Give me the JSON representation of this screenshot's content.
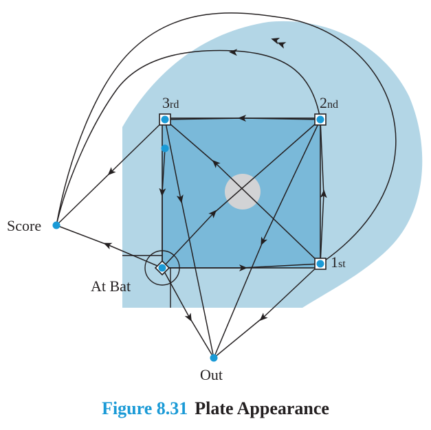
{
  "labels": {
    "third": "3",
    "third_sup": "rd",
    "second": "2",
    "second_sup": "nd",
    "first": "1",
    "first_sup": "st",
    "score": "Score",
    "at_bat": "At Bat",
    "out": "Out"
  },
  "caption": {
    "number": "Figure 8.31",
    "title": "Plate Appearance"
  },
  "colors": {
    "field": "#b3d6e6",
    "infield": "#7ab9d9",
    "node": "#1a9ad6",
    "mound": "#d2d3d5",
    "line": "#231f20",
    "caption_number": "#1a9ad6"
  }
}
